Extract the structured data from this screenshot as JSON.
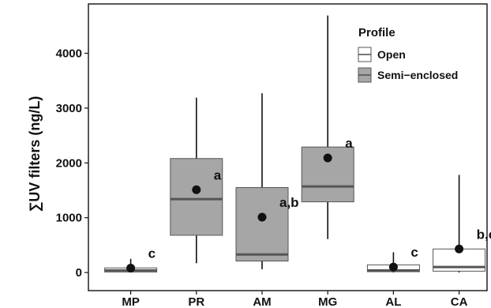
{
  "chart_data": {
    "type": "boxplot",
    "title": "",
    "ylabel": "∑UV filters (ng/L)",
    "xlabel": "",
    "ylim": [
      -330,
      4900
    ],
    "yticks": [
      0,
      1000,
      2000,
      3000,
      4000
    ],
    "grid": false,
    "legend": {
      "title": "Profile",
      "placement": "top-right-inside",
      "entries": [
        {
          "label": "Open",
          "key": "open",
          "fill": "#ffffff"
        },
        {
          "label": "Semi−enclosed",
          "key": "semi",
          "fill": "#a6a6a6"
        }
      ]
    },
    "categories": [
      "MP",
      "PR",
      "AM",
      "MG",
      "AL",
      "CA"
    ],
    "boxes": [
      {
        "category": "MP",
        "profile": "open",
        "whisker_low": 0,
        "q1": 10,
        "median": 40,
        "q3": 85,
        "whisker_high": 250,
        "mean": 80,
        "significance": "c"
      },
      {
        "category": "PR",
        "profile": "semi",
        "whisker_low": 170,
        "q1": 680,
        "median": 1340,
        "q3": 2080,
        "whisker_high": 3190,
        "mean": 1510,
        "significance": "a"
      },
      {
        "category": "AM",
        "profile": "semi",
        "whisker_low": 60,
        "q1": 210,
        "median": 330,
        "q3": 1550,
        "whisker_high": 3270,
        "mean": 1010,
        "significance": "a,b"
      },
      {
        "category": "MG",
        "profile": "semi",
        "whisker_low": 610,
        "q1": 1290,
        "median": 1570,
        "q3": 2290,
        "whisker_high": 4690,
        "mean": 2090,
        "significance": "a"
      },
      {
        "category": "AL",
        "profile": "open",
        "whisker_low": 0,
        "q1": 15,
        "median": 40,
        "q3": 140,
        "whisker_high": 370,
        "mean": 100,
        "significance": "c"
      },
      {
        "category": "CA",
        "profile": "open",
        "whisker_low": 0,
        "q1": 25,
        "median": 100,
        "q3": 430,
        "whisker_high": 1780,
        "mean": 430,
        "significance": "b,c"
      }
    ],
    "colors": {
      "semi": "#a6a6a6",
      "open": "#ffffff",
      "stroke": "#555555",
      "median": "#555555",
      "whisker": "#111111",
      "mean": "#111111"
    }
  }
}
